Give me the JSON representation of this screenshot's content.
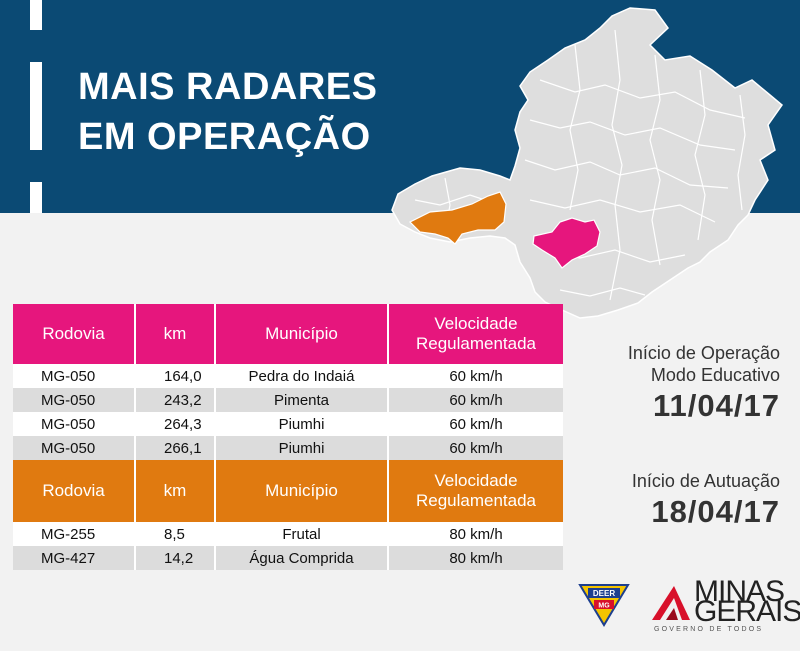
{
  "banner": {
    "headline_line1": "MAIS RADARES",
    "headline_line2": "EM OPERAÇÃO"
  },
  "colors": {
    "banner_blue": "#0b4a74",
    "magenta": "#e6167d",
    "orange": "#e07a10",
    "map_gray": "#dedede"
  },
  "table1": {
    "headers": {
      "rodovia": "Rodovia",
      "km": "km",
      "municipio": "Município",
      "velocidade_1": "Velocidade",
      "velocidade_2": "Regulamentada"
    },
    "rows": [
      {
        "rodovia": "MG-050",
        "km": "164,0",
        "municipio": "Pedra do Indaiá",
        "velocidade": "60 km/h"
      },
      {
        "rodovia": "MG-050",
        "km": "243,2",
        "municipio": "Pimenta",
        "velocidade": "60 km/h"
      },
      {
        "rodovia": "MG-050",
        "km": "264,3",
        "municipio": "Piumhi",
        "velocidade": "60 km/h"
      },
      {
        "rodovia": "MG-050",
        "km": "266,1",
        "municipio": "Piumhi",
        "velocidade": "60 km/h"
      }
    ]
  },
  "table2": {
    "headers": {
      "rodovia": "Rodovia",
      "km": "km",
      "municipio": "Município",
      "velocidade_1": "Velocidade",
      "velocidade_2": "Regulamentada"
    },
    "rows": [
      {
        "rodovia": "MG-255",
        "km": "8,5",
        "municipio": "Frutal",
        "velocidade": "80 km/h"
      },
      {
        "rodovia": "MG-427",
        "km": "14,2",
        "municipio": "Água Comprida",
        "velocidade": "80 km/h"
      }
    ]
  },
  "info": {
    "operacao_label_1": "Início de Operação",
    "operacao_label_2": "Modo Educativo",
    "operacao_date": "11/04/17",
    "atuacao_label": "Início de Autuação",
    "atuacao_date": "18/04/17"
  },
  "logos": {
    "deer_line1": "DEER",
    "deer_line2": "MG",
    "minas_gerais": "MINAS GERAIS",
    "minas_line1": "MINAS",
    "minas_line2": "GERAIS",
    "governo": "GOVERNO DE TODOS"
  }
}
